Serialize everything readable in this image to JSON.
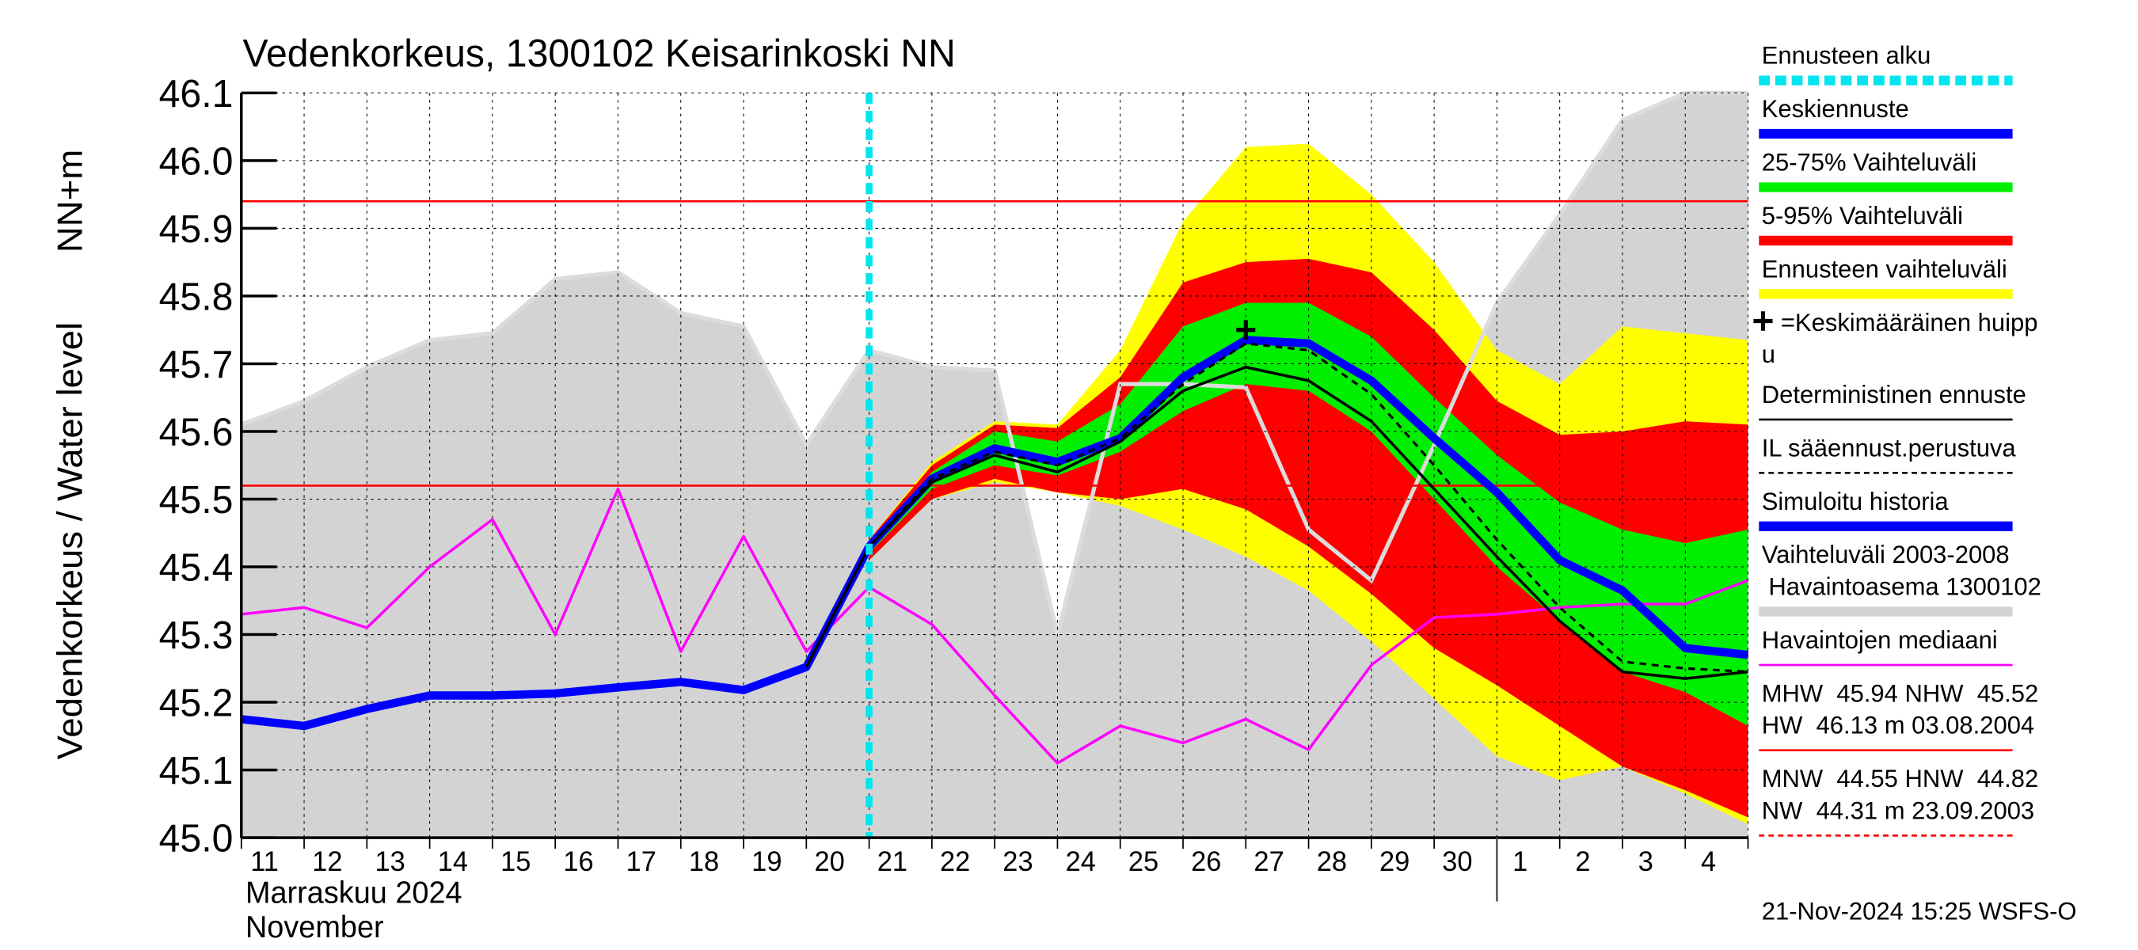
{
  "chart_data": {
    "type": "band-forecast",
    "title": "Vedenkorkeus, 1300102 Keisarinkoski NN",
    "y_label": "Vedenkorkeus / Water level",
    "y_unit": "NN+m",
    "month_label": "Marraskuu 2024",
    "month_label_en": "November",
    "timestamp": "21-Nov-2024 15:25 WSFS-O",
    "categories": [
      "11",
      "12",
      "13",
      "14",
      "15",
      "16",
      "17",
      "18",
      "19",
      "20",
      "21",
      "22",
      "23",
      "24",
      "25",
      "26",
      "27",
      "28",
      "29",
      "30",
      "1",
      "2",
      "3",
      "4",
      null
    ],
    "month_start": "1",
    "forecast_start": "21",
    "ylim": [
      45.0,
      46.1
    ],
    "yticks": [
      {
        "value": 45.0,
        "label": "45.0"
      },
      45.1,
      45.2,
      45.3,
      45.4,
      45.5,
      45.6,
      45.7,
      45.8,
      45.9,
      {
        "value": 46.0,
        "label": "46.0"
      },
      46.1
    ],
    "grid": true,
    "hlines": [
      {
        "value": 45.94,
        "color": "#ff0000"
      },
      {
        "value": 45.52,
        "color": "#ff0000"
      }
    ],
    "range_band": {
      "color": "#d3d3d3",
      "upper": [
        45.61,
        45.645,
        45.695,
        45.735,
        45.745,
        45.825,
        45.835,
        45.775,
        45.755,
        45.58,
        45.72,
        45.695,
        45.69,
        45.3,
        45.67,
        45.67,
        45.665,
        45.455,
        45.38,
        45.58,
        45.79,
        45.92,
        46.06,
        46.1,
        46.1
      ]
    },
    "bands": [
      {
        "color": "#ffff00",
        "upper": [
          null,
          null,
          null,
          null,
          null,
          null,
          null,
          null,
          null,
          null,
          45.44,
          45.555,
          45.615,
          45.61,
          45.72,
          45.91,
          46.02,
          46.025,
          45.95,
          45.85,
          45.72,
          45.67,
          45.755,
          45.745,
          45.735
        ],
        "lower": [
          null,
          null,
          null,
          null,
          null,
          null,
          null,
          null,
          null,
          null,
          45.41,
          45.5,
          45.525,
          45.51,
          45.49,
          45.455,
          45.415,
          45.365,
          45.29,
          45.205,
          45.12,
          45.085,
          45.105,
          45.065,
          45.02
        ]
      },
      {
        "color": "#ff0000",
        "upper": [
          null,
          null,
          null,
          null,
          null,
          null,
          null,
          null,
          null,
          null,
          45.44,
          45.55,
          45.61,
          45.605,
          45.68,
          45.82,
          45.85,
          45.855,
          45.835,
          45.75,
          45.645,
          45.595,
          45.6,
          45.615,
          45.61
        ],
        "lower": [
          null,
          null,
          null,
          null,
          null,
          null,
          null,
          null,
          null,
          null,
          45.41,
          45.5,
          45.53,
          45.51,
          45.5,
          45.515,
          45.485,
          45.43,
          45.36,
          45.28,
          45.225,
          45.165,
          45.105,
          45.07,
          45.03
        ]
      },
      {
        "color": "#00ee00",
        "upper": [
          null,
          null,
          null,
          null,
          null,
          null,
          null,
          null,
          null,
          null,
          45.43,
          45.54,
          45.6,
          45.585,
          45.64,
          45.755,
          45.79,
          45.79,
          45.74,
          45.65,
          45.565,
          45.495,
          45.455,
          45.435,
          45.455
        ],
        "lower": [
          null,
          null,
          null,
          null,
          null,
          null,
          null,
          null,
          null,
          null,
          45.42,
          45.515,
          45.55,
          45.535,
          45.57,
          45.63,
          45.67,
          45.66,
          45.6,
          45.5,
          45.4,
          45.32,
          45.245,
          45.215,
          45.165
        ]
      }
    ],
    "series": [
      {
        "color": "#ff00ff",
        "style": "thin",
        "values": [
          45.33,
          45.34,
          45.31,
          45.4,
          45.47,
          45.3,
          45.515,
          45.275,
          45.445,
          45.275,
          45.37,
          45.315,
          45.21,
          45.11,
          45.165,
          45.14,
          45.175,
          45.13,
          45.255,
          45.325,
          45.33,
          45.34,
          45.345,
          45.345,
          45.38
        ]
      },
      {
        "color": "#0000ff",
        "style": "thick",
        "values": [
          45.175,
          45.165,
          45.19,
          45.21,
          45.21,
          45.213,
          45.222,
          45.23,
          45.218,
          45.252,
          45.43,
          null,
          null,
          null,
          null,
          null,
          null,
          null,
          null,
          null,
          null,
          null,
          null,
          null,
          null
        ]
      },
      {
        "color": "#0000ff",
        "style": "thick",
        "values": [
          null,
          null,
          null,
          null,
          null,
          null,
          null,
          null,
          null,
          null,
          45.43,
          45.53,
          45.575,
          45.555,
          45.59,
          45.68,
          45.735,
          45.73,
          45.675,
          45.59,
          45.51,
          45.41,
          45.365,
          45.28,
          45.27
        ]
      },
      {
        "color": "#000000",
        "style": "thin",
        "values": [
          null,
          null,
          null,
          null,
          null,
          null,
          null,
          null,
          null,
          45.252,
          45.43,
          45.525,
          45.565,
          45.54,
          45.585,
          45.66,
          45.695,
          45.675,
          45.615,
          45.515,
          45.415,
          45.32,
          45.245,
          45.235,
          45.245
        ]
      },
      {
        "color": "#000000",
        "style": "dashed",
        "values": [
          null,
          null,
          null,
          null,
          null,
          null,
          null,
          null,
          null,
          null,
          45.43,
          45.53,
          45.57,
          45.55,
          45.59,
          45.67,
          45.73,
          45.72,
          45.655,
          45.55,
          45.44,
          45.34,
          45.26,
          45.25,
          45.245
        ]
      }
    ],
    "peak": {
      "category": "27",
      "value": 45.75
    },
    "legend": [
      {
        "text": [
          "Ennusteen alku"
        ],
        "color": "#00e5ee",
        "style": "dashed-thick"
      },
      {
        "text": [
          "Keskiennuste"
        ],
        "color": "#0000ff",
        "style": "thick"
      },
      {
        "text": [
          "25-75% Vaihteluväli"
        ],
        "color": "#00ee00",
        "style": "thick"
      },
      {
        "text": [
          "5-95% Vaihteluväli"
        ],
        "color": "#ff0000",
        "style": "thick"
      },
      {
        "text": [
          "Ennusteen vaihteluväli"
        ],
        "color": "#ffff00",
        "style": "thick"
      },
      {
        "text": [
          "=Keskimääräinen huipp",
          "u"
        ],
        "color": "#000000",
        "style": "peak"
      },
      {
        "text": [
          "Deterministinen ennuste"
        ],
        "color": "#000000",
        "style": "thin"
      },
      {
        "text": [
          "IL sääennust.perustuva"
        ],
        "color": "#000000",
        "style": "dashed"
      },
      {
        "text": [
          "Simuloitu historia"
        ],
        "color": "#0000ff",
        "style": "thick"
      },
      {
        "text": [
          "Vaihteluväli 2003-2008",
          " Havaintoasema 1300102"
        ],
        "color": "#d3d3d3",
        "style": "thick"
      },
      {
        "text": [
          "Havaintojen mediaani"
        ],
        "color": "#ff00ff",
        "style": "thin"
      },
      {
        "text": [
          "MHW  45.94 NHW  45.52",
          "HW  46.13 m 03.08.2004"
        ],
        "color": "#ff0000",
        "style": "thin"
      },
      {
        "text": [
          "MNW  44.55 HNW  44.82",
          "NW  44.31 m 23.09.2003"
        ],
        "color": "#ff0000",
        "style": "dashed"
      }
    ]
  }
}
